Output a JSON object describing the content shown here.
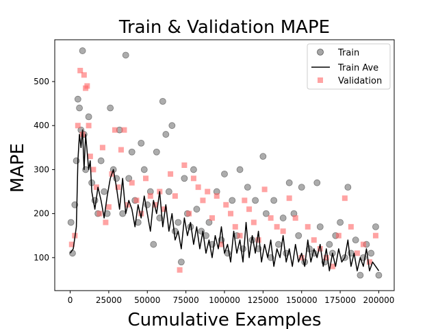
{
  "chart_data": {
    "type": "scatter",
    "title": "Train & Validation MAPE",
    "xlabel": "Cumulative Examples",
    "ylabel": "MAPE",
    "xlim": [
      -10000,
      210000
    ],
    "ylim": [
      25,
      595
    ],
    "xticks": [
      0,
      25000,
      50000,
      75000,
      100000,
      125000,
      150000,
      175000,
      200000
    ],
    "yticks": [
      100,
      200,
      300,
      400,
      500
    ],
    "grid": false,
    "legend_position": "top-right",
    "colors": {
      "train": "#808080",
      "train_ave": "#000000",
      "validation": "#ff6666"
    },
    "series": [
      {
        "name": "Train",
        "marker": "circle",
        "x": [
          500,
          1500,
          3000,
          4000,
          5000,
          6000,
          7000,
          8000,
          9000,
          10000,
          12000,
          14000,
          16000,
          18000,
          20000,
          22000,
          24000,
          26000,
          28000,
          30000,
          32000,
          34000,
          36000,
          38000,
          40000,
          42000,
          44000,
          46000,
          48000,
          50000,
          52000,
          54000,
          56000,
          58000,
          60000,
          62000,
          64000,
          66000,
          68000,
          70000,
          72000,
          74000,
          76000,
          78000,
          80000,
          82000,
          85000,
          88000,
          90000,
          92000,
          95000,
          98000,
          100000,
          102000,
          105000,
          108000,
          110000,
          112000,
          115000,
          118000,
          120000,
          122000,
          125000,
          127000,
          130000,
          132000,
          135000,
          138000,
          140000,
          142000,
          145000,
          148000,
          150000,
          152000,
          155000,
          158000,
          160000,
          162000,
          165000,
          168000,
          170000,
          172000,
          175000,
          178000,
          180000,
          182000,
          185000,
          188000,
          190000,
          192000,
          195000,
          198000,
          200000
        ],
        "y": [
          180,
          110,
          220,
          320,
          460,
          440,
          390,
          570,
          380,
          300,
          420,
          270,
          230,
          200,
          320,
          250,
          200,
          440,
          300,
          280,
          390,
          200,
          560,
          280,
          340,
          230,
          180,
          360,
          300,
          220,
          250,
          130,
          340,
          190,
          455,
          380,
          250,
          400,
          160,
          180,
          90,
          280,
          200,
          170,
          300,
          210,
          160,
          150,
          180,
          130,
          250,
          140,
          290,
          110,
          230,
          150,
          300,
          120,
          260,
          140,
          230,
          120,
          330,
          200,
          100,
          230,
          130,
          190,
          110,
          270,
          200,
          150,
          260,
          90,
          120,
          110,
          270,
          170,
          90,
          130,
          110,
          150,
          180,
          100,
          260,
          110,
          140,
          60,
          100,
          130,
          110,
          170,
          60
        ]
      },
      {
        "name": "Train Ave",
        "type": "line",
        "x": [
          0,
          2000,
          4000,
          5000,
          6000,
          7000,
          8000,
          9000,
          10000,
          11000,
          12000,
          13000,
          14000,
          16000,
          18000,
          20000,
          22000,
          24000,
          26000,
          28000,
          30000,
          32000,
          34000,
          36000,
          38000,
          40000,
          42000,
          44000,
          46000,
          48000,
          50000,
          52000,
          54000,
          56000,
          58000,
          60000,
          62000,
          64000,
          66000,
          68000,
          70000,
          72000,
          74000,
          76000,
          78000,
          80000,
          82000,
          84000,
          86000,
          88000,
          90000,
          92000,
          94000,
          96000,
          98000,
          100000,
          102000,
          104000,
          106000,
          108000,
          110000,
          112000,
          114000,
          116000,
          118000,
          120000,
          122000,
          124000,
          126000,
          128000,
          130000,
          132000,
          134000,
          136000,
          138000,
          140000,
          142000,
          144000,
          146000,
          148000,
          150000,
          152000,
          154000,
          156000,
          158000,
          160000,
          162000,
          164000,
          166000,
          168000,
          170000,
          172000,
          174000,
          176000,
          178000,
          180000,
          182000,
          184000,
          186000,
          188000,
          190000,
          192000,
          194000,
          196000,
          198000,
          200000
        ],
        "y": [
          110,
          120,
          170,
          320,
          380,
          350,
          390,
          300,
          380,
          340,
          300,
          320,
          250,
          210,
          260,
          230,
          190,
          240,
          280,
          300,
          260,
          210,
          280,
          200,
          230,
          210,
          170,
          220,
          190,
          240,
          200,
          160,
          230,
          200,
          250,
          170,
          220,
          160,
          200,
          140,
          160,
          120,
          190,
          150,
          180,
          130,
          170,
          120,
          160,
          110,
          140,
          100,
          150,
          120,
          170,
          110,
          130,
          90,
          160,
          110,
          140,
          90,
          180,
          100,
          150,
          110,
          160,
          90,
          130,
          100,
          140,
          80,
          120,
          100,
          150,
          90,
          120,
          80,
          130,
          90,
          110,
          80,
          140,
          90,
          120,
          100,
          130,
          80,
          120,
          70,
          110,
          80,
          120,
          90,
          100,
          140,
          80,
          110,
          70,
          100,
          80,
          120,
          70,
          90,
          80,
          70
        ]
      },
      {
        "name": "Validation",
        "marker": "square",
        "x": [
          1000,
          3000,
          5000,
          6500,
          8000,
          9000,
          10000,
          11000,
          12000,
          13000,
          15000,
          17000,
          19000,
          21000,
          23000,
          25000,
          27000,
          29000,
          31000,
          33000,
          35000,
          37000,
          40000,
          43000,
          46000,
          49000,
          52000,
          55000,
          58000,
          61000,
          65000,
          68000,
          71000,
          74000,
          77000,
          80000,
          83000,
          86000,
          89000,
          92000,
          95000,
          98000,
          101000,
          104000,
          107000,
          110000,
          113000,
          116000,
          119000,
          122000,
          126000,
          130000,
          134000,
          138000,
          142000,
          146000,
          150000,
          154000,
          158000,
          162000,
          166000,
          170000,
          174000,
          178000,
          182000,
          186000,
          190000,
          194000,
          198000
        ],
        "y": [
          130,
          150,
          400,
          525,
          380,
          515,
          485,
          490,
          400,
          330,
          300,
          260,
          200,
          350,
          180,
          215,
          290,
          390,
          260,
          345,
          390,
          220,
          270,
          230,
          200,
          280,
          240,
          220,
          250,
          210,
          290,
          240,
          72,
          310,
          200,
          280,
          260,
          230,
          250,
          190,
          240,
          130,
          220,
          200,
          170,
          150,
          230,
          210,
          180,
          140,
          255,
          190,
          170,
          160,
          235,
          190,
          100,
          170,
          140,
          120,
          100,
          80,
          150,
          235,
          170,
          110,
          130,
          90,
          150
        ]
      }
    ]
  }
}
